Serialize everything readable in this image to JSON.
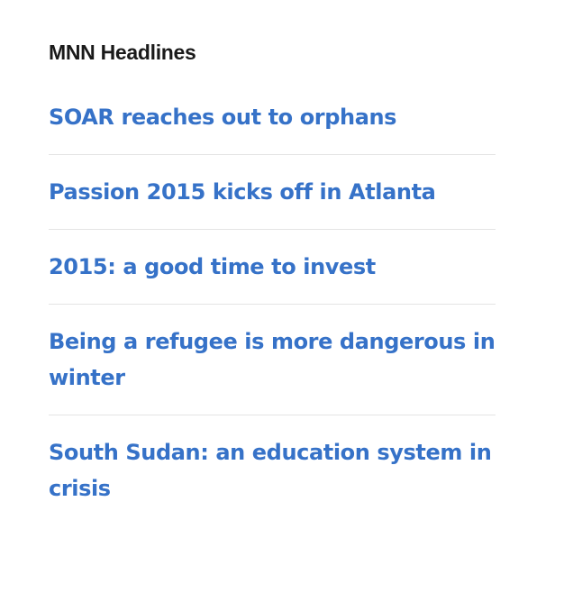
{
  "widget": {
    "title": "MNN Headlines",
    "link_color": "#3672c8",
    "headlines": [
      {
        "label": "SOAR reaches out to orphans"
      },
      {
        "label": "Passion 2015 kicks off in Atlanta"
      },
      {
        "label": "2015: a good time to invest"
      },
      {
        "label": "Being a refugee is more dangerous in winter"
      },
      {
        "label": "South Sudan: an education system in crisis"
      }
    ]
  }
}
